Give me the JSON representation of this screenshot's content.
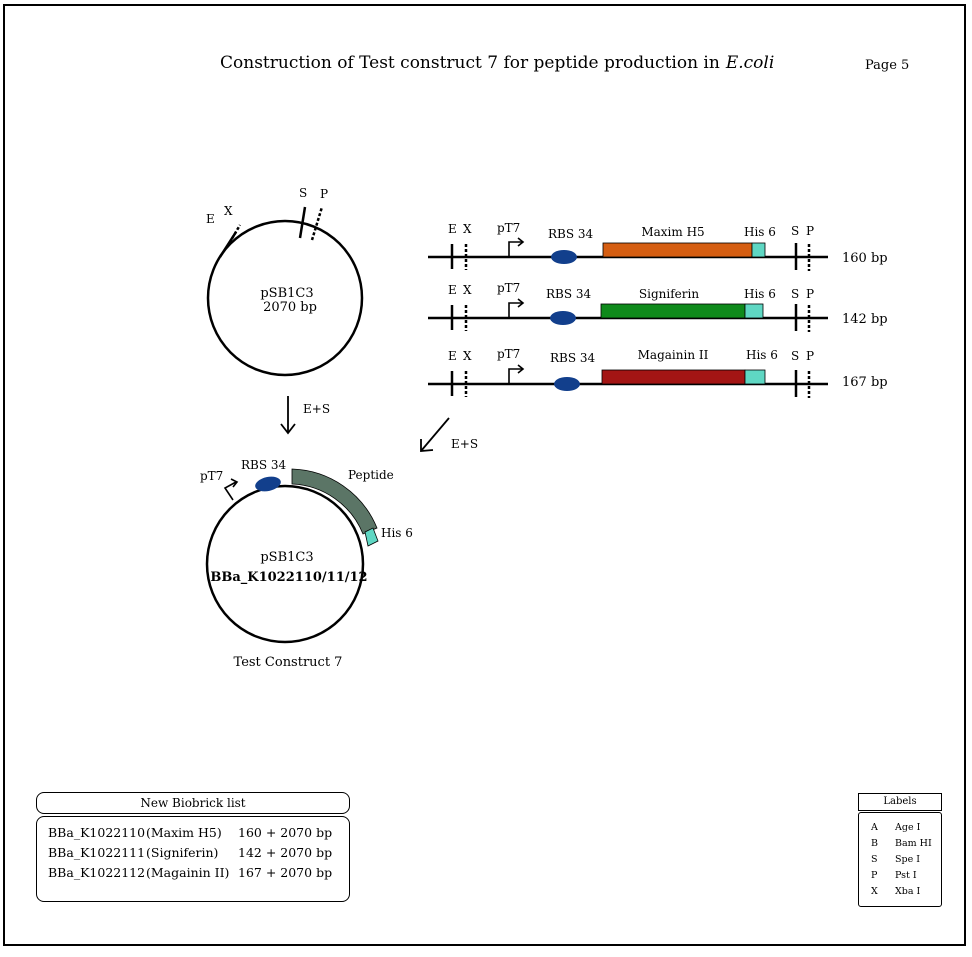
{
  "header": {
    "title": "Construction of Test construct 7 for peptide production in",
    "title_organism": "E.coli",
    "page": "Page 5"
  },
  "vector": {
    "name": "pSB1C3",
    "size": "2070 bp",
    "sites": [
      "E",
      "X",
      "S",
      "P"
    ]
  },
  "digest_label": "E+S",
  "inserts": [
    {
      "sites_left": [
        "E",
        "X"
      ],
      "promoter": "pT7",
      "rbs": "RBS 34",
      "peptide": "Maxim H5",
      "tag": "His 6",
      "sites_right": [
        "S",
        "P"
      ],
      "size": "160 bp",
      "color": "#d55e12"
    },
    {
      "sites_left": [
        "E",
        "X"
      ],
      "promoter": "pT7",
      "rbs": "RBS 34",
      "peptide": "Signiferin",
      "tag": "His 6",
      "sites_right": [
        "S",
        "P"
      ],
      "size": "142 bp",
      "color": "#0f8a1b"
    },
    {
      "sites_left": [
        "E",
        "X"
      ],
      "promoter": "pT7",
      "rbs": "RBS 34",
      "peptide": "Magainin II",
      "tag": "His 6",
      "sites_right": [
        "S",
        "P"
      ],
      "size": "167 bp",
      "color": "#a31514"
    }
  ],
  "colors": {
    "rbs": "#123f8c",
    "his_tag": "#5fd7c3",
    "peptide_arc": "#5b7566"
  },
  "construct": {
    "promoter": "pT7",
    "rbs": "RBS 34",
    "peptide": "Peptide",
    "tag": "His 6",
    "vector": "pSB1C3",
    "parts": "BBa_K1022110/11/12",
    "caption": "Test Construct 7"
  },
  "biobrick_list": {
    "title": "New Biobrick list",
    "rows": [
      {
        "id": "BBa_K1022110",
        "name": "(Maxim H5)",
        "size": "160 + 2070 bp"
      },
      {
        "id": "BBa_K1022111",
        "name": "(Signiferin)",
        "size": "142 + 2070 bp"
      },
      {
        "id": "BBa_K1022112",
        "name": "(Magainin II)",
        "size": "167 + 2070 bp"
      }
    ]
  },
  "labels_legend": {
    "title": "Labels",
    "rows": [
      {
        "key": "A",
        "enzyme": "Age I"
      },
      {
        "key": "B",
        "enzyme": "Bam HI"
      },
      {
        "key": "S",
        "enzyme": "Spe I"
      },
      {
        "key": "P",
        "enzyme": "Pst I"
      },
      {
        "key": "X",
        "enzyme": "Xba I"
      }
    ]
  }
}
